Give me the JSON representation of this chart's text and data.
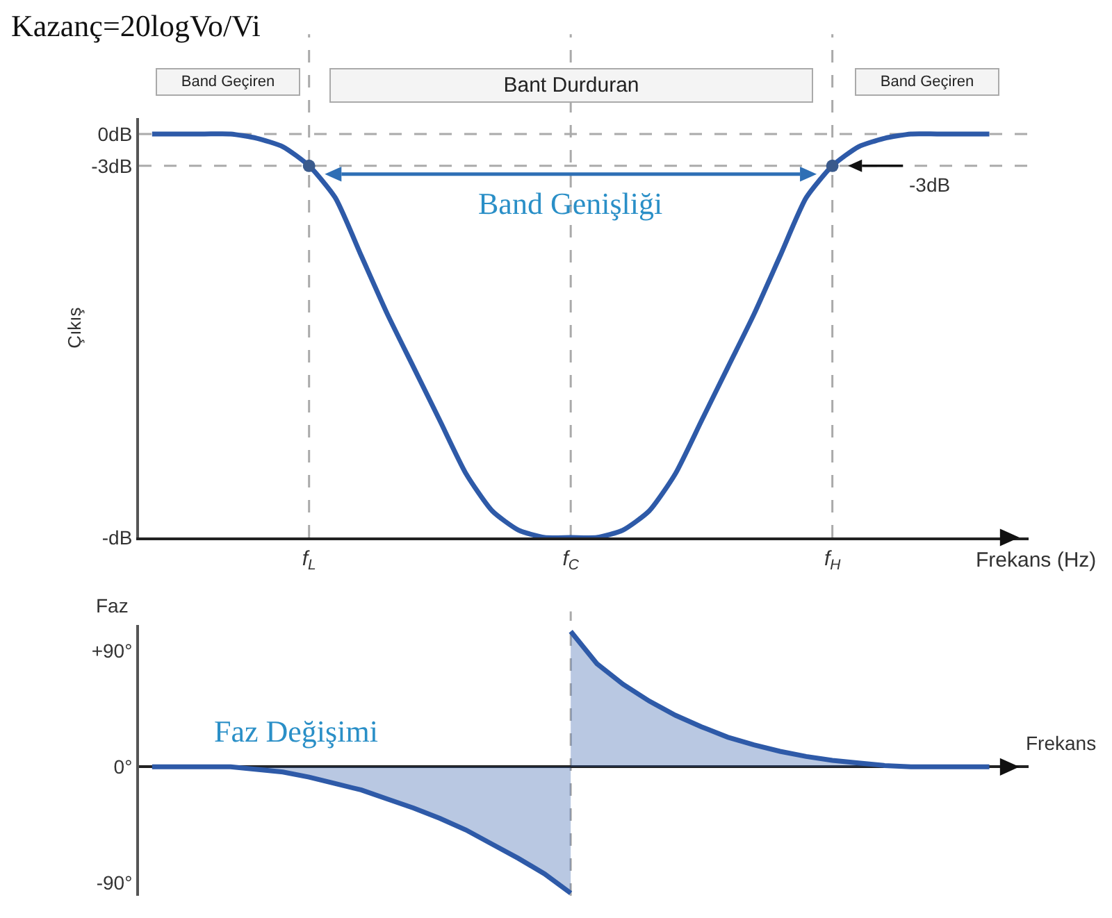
{
  "chart_data": [
    {
      "type": "line",
      "title": "Kazanç=20logVo/Vi",
      "xlabel": "Frekans (Hz)",
      "ylabel": "Çıkış",
      "categories": [
        null,
        null,
        null,
        null,
        null,
        null,
        "f$_{L}$",
        null,
        null,
        null,
        null,
        null,
        null,
        null,
        null,
        null,
        "f$_{C}$",
        null,
        null,
        null,
        null,
        null,
        null,
        null,
        null,
        null,
        "f$_{H}$",
        null,
        null,
        null,
        null,
        null,
        null
      ],
      "series": [
        {
          "color": "#2e5aa8",
          "values": [
            0,
            0,
            0,
            0,
            -0.4,
            -1.2,
            -3,
            -6,
            -11.5,
            -17,
            -22,
            -27,
            -32,
            -35.5,
            -37.3,
            -38,
            -38,
            -38,
            -37.3,
            -35.5,
            -32,
            -27,
            -22,
            -17,
            -11.5,
            -6,
            -3,
            -1.2,
            -0.4,
            0,
            0,
            0,
            0
          ]
        },
        {
          "type": "scatter",
          "marker": "circle",
          "color": "#3a5a8c",
          "x": [
            "f$_{L}$",
            "f$_{H}$"
          ],
          "values": [
            -3,
            -3
          ]
        }
      ],
      "ylim": [
        -38,
        1.5
      ],
      "yticks": [
        {
          "value": 0,
          "label": "0dB"
        },
        {
          "value": -3,
          "label": "-3dB"
        },
        {
          "value": -38,
          "label": "-dB"
        }
      ],
      "ref_lines": [
        {
          "axis": "y",
          "value": 0,
          "color": "#aaaaaa",
          "line_style": "dashed"
        },
        {
          "axis": "y",
          "value": -3,
          "color": "#aaaaaa",
          "line_style": "dashed"
        },
        {
          "axis": "x",
          "value": "f$_{L}$",
          "color": "#aaaaaa",
          "line_style": "dashed"
        },
        {
          "axis": "x",
          "value": "f$_{C}$",
          "color": "#aaaaaa",
          "line_style": "dashed"
        },
        {
          "axis": "x",
          "value": "f$_{H}$",
          "color": "#aaaaaa",
          "line_style": "dashed"
        }
      ],
      "annotations": [
        "Band Geçiren",
        "Bant Durduran",
        "Band Geçiren",
        "Band Genişliği",
        "-3dB"
      ]
    },
    {
      "type": "area",
      "xlabel": "Frekans",
      "ylabel": "Faz",
      "tick_labels": "y",
      "categories": [
        null,
        null,
        null,
        null,
        null,
        null,
        "f$_{L}$",
        null,
        null,
        null,
        null,
        null,
        null,
        null,
        null,
        null,
        "f$_{C}$",
        null,
        null,
        null,
        null,
        null,
        null,
        null,
        null,
        null,
        "f$_{H}$",
        null,
        null,
        null,
        null,
        null,
        null
      ],
      "series": [
        {
          "color": "#2e5aa8",
          "values": [
            0,
            0,
            0,
            0,
            -2,
            -4,
            -8,
            -13,
            -18,
            -25,
            -32,
            -40,
            -49,
            -60,
            -71,
            -83,
            -98,
            null,
            null,
            null,
            null,
            null,
            null,
            null,
            null,
            null,
            null,
            null,
            null,
            null,
            null,
            null,
            null
          ]
        },
        {
          "color": "#2e5aa8",
          "values": [
            null,
            null,
            null,
            null,
            null,
            null,
            null,
            null,
            null,
            null,
            null,
            null,
            null,
            null,
            null,
            null,
            105,
            80,
            64,
            51,
            40,
            31,
            23,
            17,
            12,
            8,
            5,
            3,
            1,
            0,
            0,
            0,
            0
          ]
        }
      ],
      "ylim": [
        -100,
        110
      ],
      "yticks": [
        {
          "value": 90,
          "label": "+90°"
        },
        {
          "value": 0,
          "label": "0°"
        },
        {
          "value": -90,
          "label": "-90°"
        }
      ],
      "ref_lines": [
        {
          "axis": "x",
          "value": "f$_{C}$",
          "color": "#aaaaaa",
          "line_style": "dashed"
        }
      ],
      "annotations": [
        "Faz Değişimi"
      ]
    }
  ]
}
